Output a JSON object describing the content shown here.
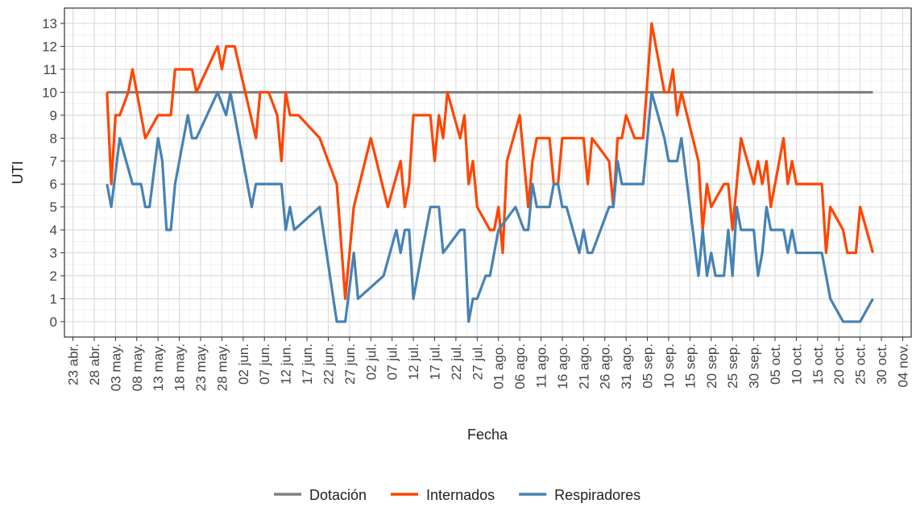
{
  "chart_data": {
    "type": "line",
    "x_label": "Fecha",
    "y_label": "UTI",
    "xlim": [
      "21 abr.",
      "06 nov."
    ],
    "xticks": [
      "23 abr.",
      "28 abr.",
      "03 may.",
      "08 may.",
      "13 may.",
      "18 may.",
      "23 may.",
      "28 may.",
      "02 jun.",
      "07 jun.",
      "12 jun.",
      "17 jun.",
      "22 jun.",
      "27 jun.",
      "02 jul.",
      "07 jul.",
      "12 jul.",
      "17 jul.",
      "22 jul.",
      "27 jul.",
      "01 ago.",
      "06 ago.",
      "11 ago.",
      "16 ago.",
      "21 ago.",
      "26 ago.",
      "31 ago.",
      "05 sep.",
      "10 sep.",
      "15 sep.",
      "20 sep.",
      "25 sep.",
      "30 sep.",
      "05 oct.",
      "10 oct.",
      "15 oct.",
      "20 oct.",
      "25 oct.",
      "30 oct.",
      "04 nov."
    ],
    "ylim": [
      -0.67,
      13.67
    ],
    "yticks": [
      0,
      1,
      2,
      3,
      4,
      5,
      6,
      7,
      8,
      9,
      10,
      11,
      12,
      13
    ],
    "grid": true,
    "legend": "bottom",
    "series": [
      {
        "name": "Dotación",
        "color": "#808080",
        "x": [
          "01 may.",
          "28 oct."
        ],
        "values": [
          10,
          10
        ]
      },
      {
        "name": "Internados",
        "color": "#ff4500",
        "x": [
          "01 may.",
          "02 may.",
          "03 may.",
          "04 may.",
          "06 may.",
          "07 may.",
          "10 may.",
          "13 may.",
          "16 may.",
          "17 may.",
          "21 may.",
          "22 may.",
          "27 may.",
          "28 may.",
          "29 may.",
          "31 may.",
          "05 jun.",
          "06 jun.",
          "08 jun.",
          "10 jun.",
          "11 jun.",
          "12 jun.",
          "13 jun.",
          "15 jun.",
          "20 jun.",
          "22 jun.",
          "24 jun.",
          "26 jun.",
          "28 jun.",
          "02 jul.",
          "06 jul.",
          "09 jul.",
          "10 jul.",
          "11 jul.",
          "12 jul.",
          "16 jul.",
          "17 jul.",
          "18 jul.",
          "19 jul.",
          "20 jul.",
          "23 jul.",
          "24 jul.",
          "25 jul.",
          "26 jul.",
          "27 jul.",
          "30 jul.",
          "31 jul.",
          "01 ago.",
          "02 ago.",
          "03 ago.",
          "06 ago.",
          "08 ago.",
          "09 ago.",
          "10 ago.",
          "13 ago.",
          "14 ago.",
          "15 ago.",
          "16 ago.",
          "21 ago.",
          "22 ago.",
          "23 ago.",
          "27 ago.",
          "28 ago.",
          "29 ago.",
          "30 ago.",
          "31 ago.",
          "02 sep.",
          "04 sep.",
          "06 sep.",
          "09 sep.",
          "10 sep.",
          "11 sep.",
          "12 sep.",
          "13 sep.",
          "17 sep.",
          "18 sep.",
          "19 sep.",
          "20 sep.",
          "23 sep.",
          "24 sep.",
          "25 sep.",
          "27 sep.",
          "30 sep.",
          "01 oct.",
          "02 oct.",
          "03 oct.",
          "04 oct.",
          "07 oct.",
          "08 oct.",
          "09 oct.",
          "10 oct.",
          "16 oct.",
          "17 oct.",
          "18 oct.",
          "21 oct.",
          "22 oct.",
          "24 oct.",
          "25 oct.",
          "28 oct."
        ],
        "values": [
          10,
          6,
          9,
          9,
          10,
          11,
          8,
          9,
          9,
          11,
          11,
          10,
          12,
          11,
          12,
          12,
          8,
          10,
          10,
          9,
          7,
          10,
          9,
          9,
          8,
          7,
          6,
          1,
          5,
          8,
          5,
          7,
          5,
          6,
          9,
          9,
          7,
          9,
          8,
          10,
          8,
          9,
          6,
          7,
          5,
          4,
          4,
          5,
          3,
          7,
          9,
          5,
          7,
          8,
          8,
          6,
          6,
          8,
          8,
          6,
          8,
          7,
          5,
          8,
          8,
          9,
          8,
          8,
          13,
          10,
          10,
          11,
          9,
          10,
          7,
          4,
          6,
          5,
          6,
          6,
          4,
          8,
          6,
          7,
          6,
          7,
          5,
          8,
          6,
          7,
          6,
          6,
          3,
          5,
          4,
          3,
          3,
          5,
          3
        ]
      },
      {
        "name": "Respiradores",
        "color": "#4682b4",
        "x": [
          "01 may.",
          "02 may.",
          "04 may.",
          "07 may.",
          "09 may.",
          "10 may.",
          "11 may.",
          "13 may.",
          "14 may.",
          "15 may.",
          "16 may.",
          "17 may.",
          "20 may.",
          "21 may.",
          "22 may.",
          "27 may.",
          "29 may.",
          "30 may.",
          "04 jun.",
          "05 jun.",
          "11 jun.",
          "12 jun.",
          "13 jun.",
          "14 jun.",
          "20 jun.",
          "24 jun.",
          "26 jun.",
          "28 jun.",
          "29 jun.",
          "05 jul.",
          "08 jul.",
          "09 jul.",
          "10 jul.",
          "11 jul.",
          "12 jul.",
          "16 jul.",
          "18 jul.",
          "19 jul.",
          "23 jul.",
          "24 jul.",
          "25 jul.",
          "26 jul.",
          "27 jul.",
          "29 jul.",
          "30 jul.",
          "01 ago.",
          "05 ago.",
          "07 ago.",
          "08 ago.",
          "09 ago.",
          "10 ago.",
          "13 ago.",
          "14 ago.",
          "15 ago.",
          "16 ago.",
          "17 ago.",
          "20 ago.",
          "21 ago.",
          "22 ago.",
          "23 ago.",
          "27 ago.",
          "28 ago.",
          "29 ago.",
          "30 ago.",
          "04 sep.",
          "06 sep.",
          "09 sep.",
          "10 sep.",
          "12 sep.",
          "13 sep.",
          "17 sep.",
          "18 sep.",
          "19 sep.",
          "20 sep.",
          "21 sep.",
          "23 sep.",
          "24 sep.",
          "25 sep.",
          "26 sep.",
          "27 sep.",
          "30 sep.",
          "01 oct.",
          "02 oct.",
          "03 oct.",
          "04 oct.",
          "07 oct.",
          "08 oct.",
          "09 oct.",
          "10 oct.",
          "16 oct.",
          "18 oct.",
          "21 oct.",
          "25 oct.",
          "28 oct."
        ],
        "values": [
          6,
          5,
          8,
          6,
          6,
          5,
          5,
          8,
          7,
          4,
          4,
          6,
          9,
          8,
          8,
          10,
          9,
          10,
          5,
          6,
          6,
          4,
          5,
          4,
          5,
          0,
          0,
          3,
          1,
          2,
          4,
          3,
          4,
          4,
          1,
          5,
          5,
          3,
          4,
          4,
          0,
          1,
          1,
          2,
          2,
          4,
          5,
          4,
          4,
          6,
          5,
          5,
          6,
          6,
          5,
          5,
          3,
          4,
          3,
          3,
          5,
          5,
          7,
          6,
          6,
          10,
          8,
          7,
          7,
          8,
          2,
          4,
          2,
          3,
          2,
          2,
          4,
          2,
          5,
          4,
          4,
          2,
          3,
          5,
          4,
          4,
          3,
          4,
          3,
          3,
          1,
          0,
          0,
          1
        ]
      }
    ]
  }
}
